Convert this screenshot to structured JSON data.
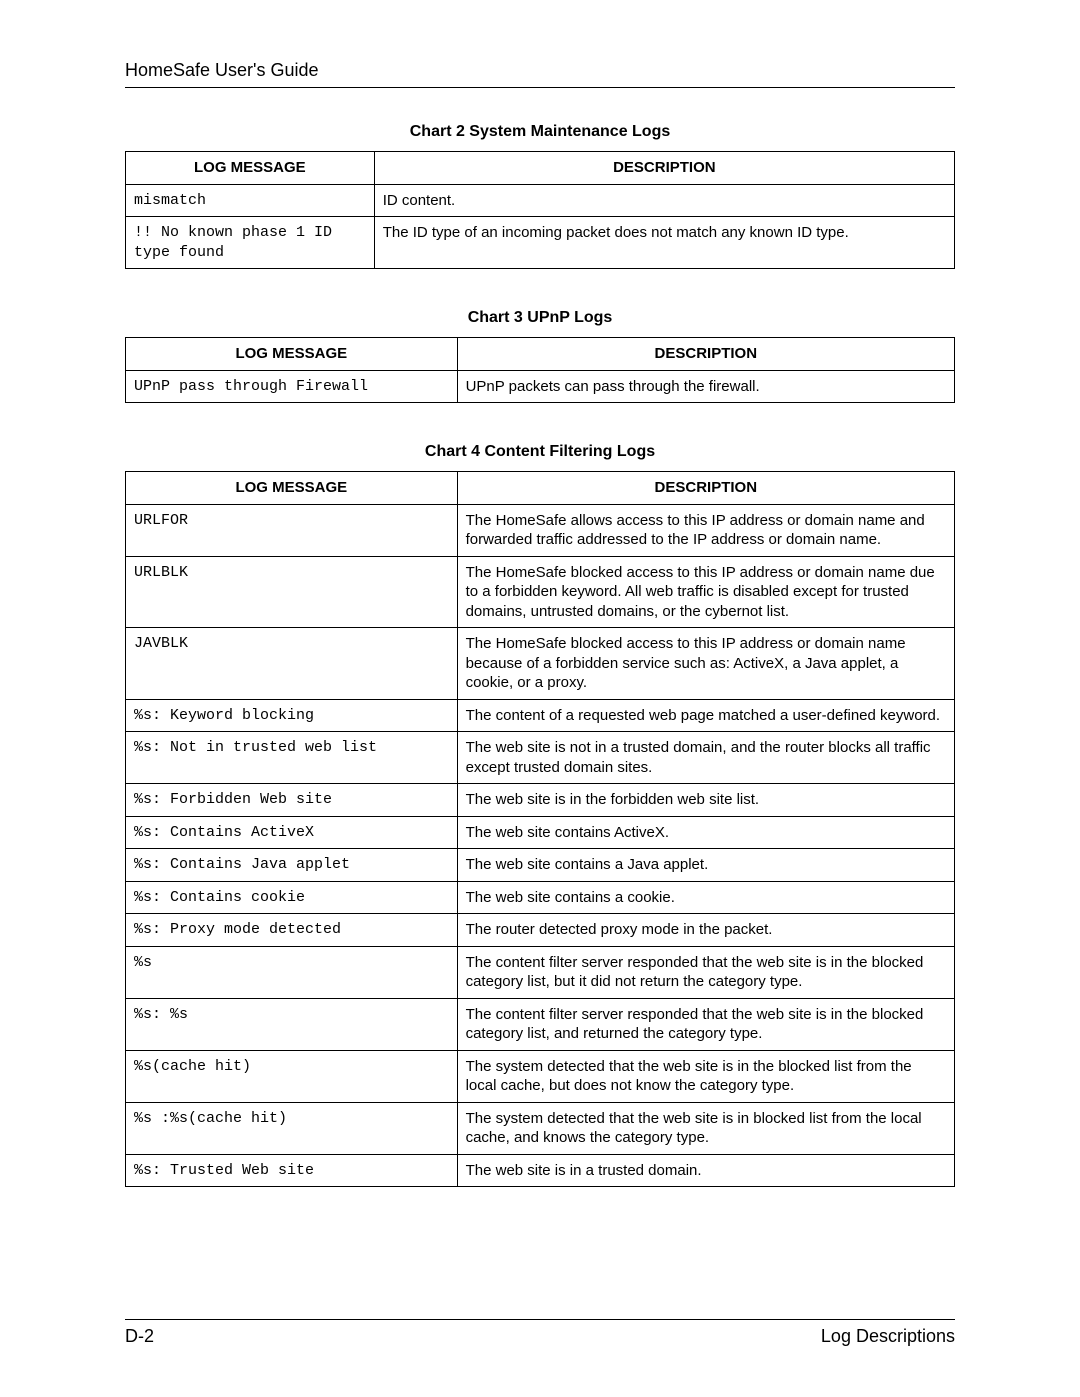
{
  "header": {
    "title": "HomeSafe User's Guide"
  },
  "charts": [
    {
      "title": "Chart 2 System Maintenance Logs",
      "columns": [
        "LOG MESSAGE",
        "DESCRIPTION"
      ],
      "col_classes": [
        "table1-col1",
        "table1-col2"
      ],
      "rows": [
        {
          "msg": "mismatch",
          "desc": "ID content."
        },
        {
          "msg": "!! No known phase 1 ID type found",
          "desc": "The ID type of an incoming packet does not match any known ID type."
        }
      ]
    },
    {
      "title": "Chart 3 UPnP Logs",
      "columns": [
        "LOG MESSAGE",
        "DESCRIPTION"
      ],
      "col_classes": [
        "table2-col1",
        "table2-col2"
      ],
      "rows": [
        {
          "msg": "UPnP pass through Firewall",
          "desc": "UPnP packets can pass through the firewall."
        }
      ]
    },
    {
      "title": "Chart 4 Content Filtering Logs",
      "columns": [
        "LOG MESSAGE",
        "DESCRIPTION"
      ],
      "col_classes": [
        "table3-col1",
        "table3-col2"
      ],
      "rows": [
        {
          "msg": "URLFOR",
          "desc": "The HomeSafe allows access to this IP address or domain name and forwarded traffic addressed to the IP address or domain name."
        },
        {
          "msg": "URLBLK",
          "desc": "The HomeSafe blocked access to this IP address or domain name due to a forbidden keyword. All web traffic is disabled except for trusted domains, untrusted domains, or the cybernot list."
        },
        {
          "msg": "JAVBLK",
          "desc": "The HomeSafe blocked access to this IP address or domain name because of a forbidden service such as: ActiveX, a Java applet, a cookie, or a proxy."
        },
        {
          "msg": "%s: Keyword blocking",
          "desc": "The content of a requested web page matched a user-defined keyword."
        },
        {
          "msg": "%s: Not in trusted web list",
          "desc": "The web site is not in a trusted domain, and the router blocks all traffic except trusted domain sites."
        },
        {
          "msg": "%s: Forbidden Web site",
          "desc": "The web site is in the forbidden web site list."
        },
        {
          "msg": "%s: Contains ActiveX",
          "desc": "The web site contains ActiveX."
        },
        {
          "msg": "%s: Contains Java applet",
          "desc": "The web site contains a Java applet."
        },
        {
          "msg": "%s: Contains cookie",
          "desc": "The web site contains a cookie."
        },
        {
          "msg": "%s: Proxy mode detected",
          "desc": "The router detected proxy mode in the packet."
        },
        {
          "msg": "%s",
          "desc": "The content filter server responded that the web site is in the blocked category list, but it did not return the category type."
        },
        {
          "msg": "%s: %s",
          "desc": "The content filter server responded that the web site is in the blocked category list, and returned the category type."
        },
        {
          "msg": "%s(cache hit)",
          "desc": "The system detected that the web site is in the blocked list from the local cache, but does not know the category type."
        },
        {
          "msg": "%s :%s(cache hit)",
          "desc": "The system detected that the web site is in blocked list from the local cache, and knows the category type."
        },
        {
          "msg": "%s: Trusted Web site",
          "desc": "The web site is in a trusted domain."
        }
      ]
    }
  ],
  "footer": {
    "left": "D-2",
    "right": "Log Descriptions"
  }
}
